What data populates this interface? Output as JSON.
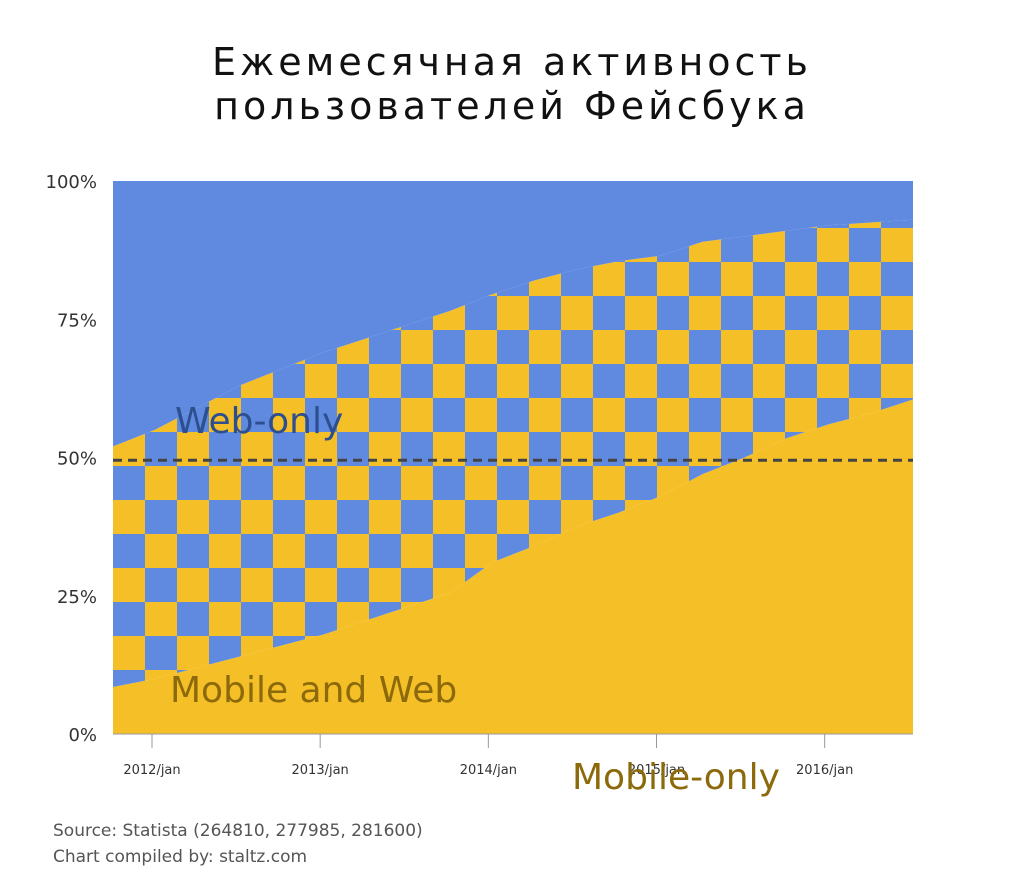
{
  "title_lines": [
    "Ежемесячная активность",
    "пользователей Фейсбука"
  ],
  "colors": {
    "web_only": "#5f8ae0",
    "mobile_only": "#f5bf27",
    "check_a": "#5f8ae0",
    "check_b": "#f5bf27",
    "web_label": "#2d4f8f",
    "mobile_label": "#8c6a0c",
    "reference_line": "#444444"
  },
  "chart_data": {
    "type": "area",
    "stacked": true,
    "normalized_percent": true,
    "x": [
      "2012/jan",
      "2012/apr",
      "2012/jul",
      "2012/oct",
      "2013/jan",
      "2013/apr",
      "2013/jul",
      "2013/oct",
      "2014/jan",
      "2014/apr",
      "2014/jul",
      "2014/oct",
      "2015/jan",
      "2015/apr",
      "2015/jul",
      "2015/oct",
      "2016/jan",
      "2016/apr",
      "2016/jul",
      "2016/oct"
    ],
    "xticks": [
      "2012/jan",
      "2013/jan",
      "2014/jan",
      "2015/jan",
      "2016/jan"
    ],
    "yticks": [
      "0%",
      "25%",
      "50%",
      "75%",
      "100%"
    ],
    "ylim": [
      0,
      100
    ],
    "series": [
      {
        "name": "Mobile-only",
        "values": [
          8.5,
          10,
          12,
          14,
          16,
          18,
          20.5,
          23,
          25.5,
          31,
          34,
          37.5,
          40,
          43,
          47,
          50,
          53.5,
          56,
          58,
          60.5
        ]
      },
      {
        "name": "Mobile and Web",
        "values": [
          43.5,
          45,
          47,
          49,
          50,
          51,
          51,
          51,
          51,
          48.5,
          48,
          46.5,
          45.5,
          43.5,
          42,
          40,
          37.5,
          36,
          34.5,
          32.5
        ]
      },
      {
        "name": "Web-only",
        "values": [
          48,
          45,
          41,
          37,
          34,
          31,
          28.5,
          26,
          23.5,
          20.5,
          18,
          16,
          14.5,
          13.5,
          11,
          10,
          9,
          8,
          7.5,
          7
        ]
      }
    ],
    "reference_line": {
      "y": 49.5,
      "style": "dashed"
    },
    "grid": false,
    "legend": "none"
  },
  "footer": {
    "source": "Source: Statista (264810, 277985, 281600)",
    "compiled": "Chart compiled by: staltz.com"
  }
}
